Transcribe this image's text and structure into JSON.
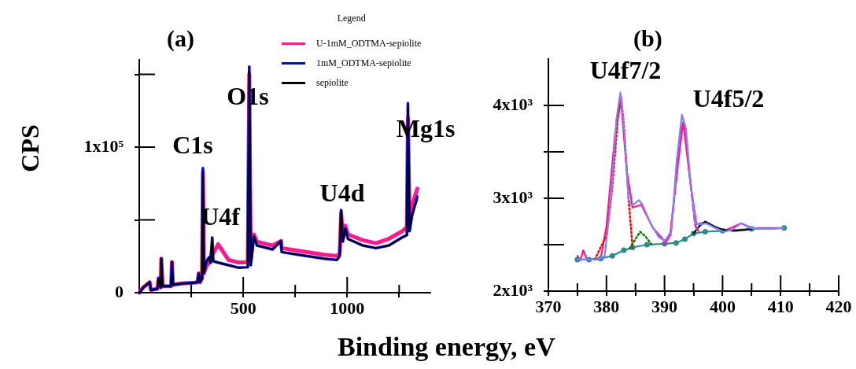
{
  "chart_data": [
    {
      "type": "line",
      "title": "(a)",
      "xlabel": "Binding energy, eV",
      "ylabel": "CPS",
      "legend": "top right",
      "legend_title": "Legend",
      "grid": false,
      "xlim": [
        0,
        1400
      ],
      "xticks": [
        {
          "value": 250,
          "label": null
        },
        500,
        {
          "value": 750,
          "label": null
        },
        1000,
        {
          "value": 1250,
          "label": null
        }
      ],
      "ylim": [
        0,
        160000
      ],
      "yticks": [
        0,
        {
          "value": 50000,
          "label": null
        },
        {
          "value": 100000,
          "label": "1x10⁵"
        },
        {
          "value": 150000,
          "label": null
        }
      ],
      "x": [
        0,
        19,
        50,
        56,
        87,
        93,
        103,
        106,
        112,
        153,
        157,
        162,
        205,
        255,
        280,
        286,
        292,
        302,
        306,
        311,
        323,
        336,
        342,
        351,
        356,
        379,
        429,
        479,
        522,
        529,
        536,
        551,
        566,
        641,
        682,
        685,
        765,
        889,
        951,
        964,
        971,
        979,
        991,
        1004,
        1076,
        1138,
        1200,
        1262,
        1287,
        1292,
        1300,
        1312,
        1337
      ],
      "series": [
        {
          "name": "U-1mM_ODTMA-sepiolite",
          "color": "#ff1a8c",
          "values": [
            0,
            3600,
            7200,
            1800,
            2700,
            9900,
            3600,
            23400,
            4500,
            4500,
            21100,
            5400,
            6300,
            6700,
            7200,
            13200,
            7200,
            9900,
            83000,
            13500,
            18000,
            20700,
            20700,
            30000,
            27000,
            33300,
            22500,
            20700,
            21000,
            150000,
            22000,
            40000,
            35100,
            32400,
            35500,
            30600,
            28800,
            26100,
            25200,
            27000,
            55000,
            37000,
            46000,
            40000,
            36000,
            34000,
            37000,
            42000,
            45000,
            120000,
            50000,
            60000,
            71500
          ]
        },
        {
          "name": "1mM_ODTMA-sepiolite",
          "color": "#0000ff",
          "values": [
            0,
            3600,
            7200,
            1800,
            2700,
            9900,
            3600,
            23400,
            4500,
            4500,
            21100,
            5400,
            6300,
            6700,
            7200,
            13200,
            7200,
            9900,
            85600,
            13500,
            21600,
            24300,
            20700,
            37800,
            21600,
            20700,
            18900,
            17100,
            17500,
            155300,
            18900,
            38700,
            32400,
            29700,
            35500,
            27900,
            26100,
            23400,
            22500,
            25200,
            56800,
            35100,
            44100,
            36900,
            32400,
            30600,
            32400,
            37800,
            39600,
            130100,
            42300,
            53200,
            66000
          ]
        },
        {
          "name": "sepiolite",
          "color": "#000000",
          "values": [
            0,
            3600,
            7200,
            1800,
            2700,
            9900,
            3600,
            23400,
            4500,
            4500,
            21100,
            5400,
            6300,
            6700,
            7200,
            13200,
            7200,
            9900,
            83800,
            13500,
            21600,
            24300,
            20700,
            37800,
            21600,
            20700,
            18900,
            17100,
            17500,
            152000,
            18900,
            38700,
            32400,
            29700,
            35500,
            27900,
            26100,
            23400,
            22500,
            25200,
            56800,
            35100,
            44100,
            36900,
            32400,
            30600,
            32400,
            37800,
            39600,
            128000,
            42300,
            53200,
            64000
          ]
        }
      ],
      "annotations": [
        "C1s",
        "U4f",
        "O1s",
        "U4d",
        "Mg1s"
      ]
    },
    {
      "type": "line",
      "title": "(b)",
      "grid": false,
      "xlim": [
        370,
        420
      ],
      "xticks": [
        370,
        {
          "value": 375,
          "label": null
        },
        380,
        {
          "value": 385,
          "label": null
        },
        390,
        {
          "value": 395,
          "label": null
        },
        400,
        {
          "value": 405,
          "label": null
        },
        410,
        {
          "value": 415,
          "label": null
        },
        420
      ],
      "ylim": [
        2000,
        4500
      ],
      "yticks": [
        {
          "value": 2000,
          "label": "2x10³"
        },
        {
          "value": 2500,
          "label": null
        },
        {
          "value": 3000,
          "label": "3x10³"
        },
        {
          "value": 3500,
          "label": null
        },
        {
          "value": 4000,
          "label": "4x10³"
        }
      ],
      "series": [
        {
          "color": "#ff1a8c",
          "x": [
            375,
            375.5,
            376,
            376.5,
            377,
            379,
            380,
            381.5,
            382.5,
            383.5,
            384.5,
            386,
            388,
            390,
            391,
            392,
            393.2,
            394.5,
            395.5,
            397,
            400,
            403.2,
            405,
            410.6
          ],
          "values": [
            2380,
            2330,
            2440,
            2360,
            2340,
            2350,
            2700,
            3700,
            4050,
            3300,
            2900,
            2930,
            2680,
            2540,
            2600,
            3200,
            3820,
            3150,
            2720,
            2740,
            2640,
            2730,
            2680,
            2680
          ]
        },
        {
          "marker": "circle",
          "color": "#2e8b8b",
          "x": [
            375,
            377,
            379,
            381,
            383,
            384.5,
            387,
            390,
            392,
            393.5,
            395,
            397,
            400,
            405,
            410.6
          ],
          "values": [
            2340,
            2340,
            2350,
            2380,
            2440,
            2470,
            2500,
            2510,
            2520,
            2560,
            2620,
            2640,
            2650,
            2670,
            2680
          ]
        },
        {
          "color": "#000000",
          "x": [
            395,
            396,
            397,
            398.5,
            400,
            402,
            404,
            405
          ],
          "values": [
            2620,
            2700,
            2750,
            2700,
            2660,
            2650,
            2660,
            2670
          ]
        },
        {
          "color": "#ff0000",
          "line_style": "dotted",
          "x": [
            378,
            380,
            381,
            382,
            382.5,
            383,
            383.8,
            384.5
          ],
          "values": [
            2340,
            2600,
            3100,
            3900,
            4100,
            3800,
            3000,
            2470
          ]
        },
        {
          "color": "#008000",
          "line_style": "dotted",
          "x": [
            384,
            385,
            385.8,
            386.7,
            387.8
          ],
          "values": [
            2460,
            2560,
            2640,
            2590,
            2500
          ]
        },
        {
          "color": "#ff1a8c",
          "line_style": "dashed",
          "x": [
            390,
            391,
            392,
            393,
            393.5,
            394.5,
            395.3,
            396
          ],
          "values": [
            2510,
            2600,
            3200,
            3800,
            3780,
            3150,
            2700,
            2630
          ]
        },
        {
          "color": "#8080ff",
          "x": [
            375,
            376.3,
            378.6,
            379.7,
            380.8,
            381.7,
            382.4,
            383.1,
            383.8,
            384.4,
            385.6,
            386.2,
            387.6,
            389,
            390.1,
            391.2,
            392.1,
            393,
            393.7,
            394.4,
            395.3,
            396.2,
            397.1,
            398.4,
            400.2,
            401.6,
            403.2,
            404.7,
            406.6,
            408.8,
            410.6
          ],
          "values": [
            2340,
            2340,
            2340,
            2380,
            2990,
            3840,
            4140,
            3700,
            2990,
            2920,
            2980,
            2930,
            2730,
            2580,
            2540,
            2650,
            3410,
            3900,
            3750,
            3220,
            2730,
            2720,
            2730,
            2690,
            2640,
            2660,
            2730,
            2680,
            2670,
            2670,
            2680
          ]
        }
      ],
      "annotations": [
        "U4f7/2",
        "U4f5/2"
      ]
    }
  ]
}
